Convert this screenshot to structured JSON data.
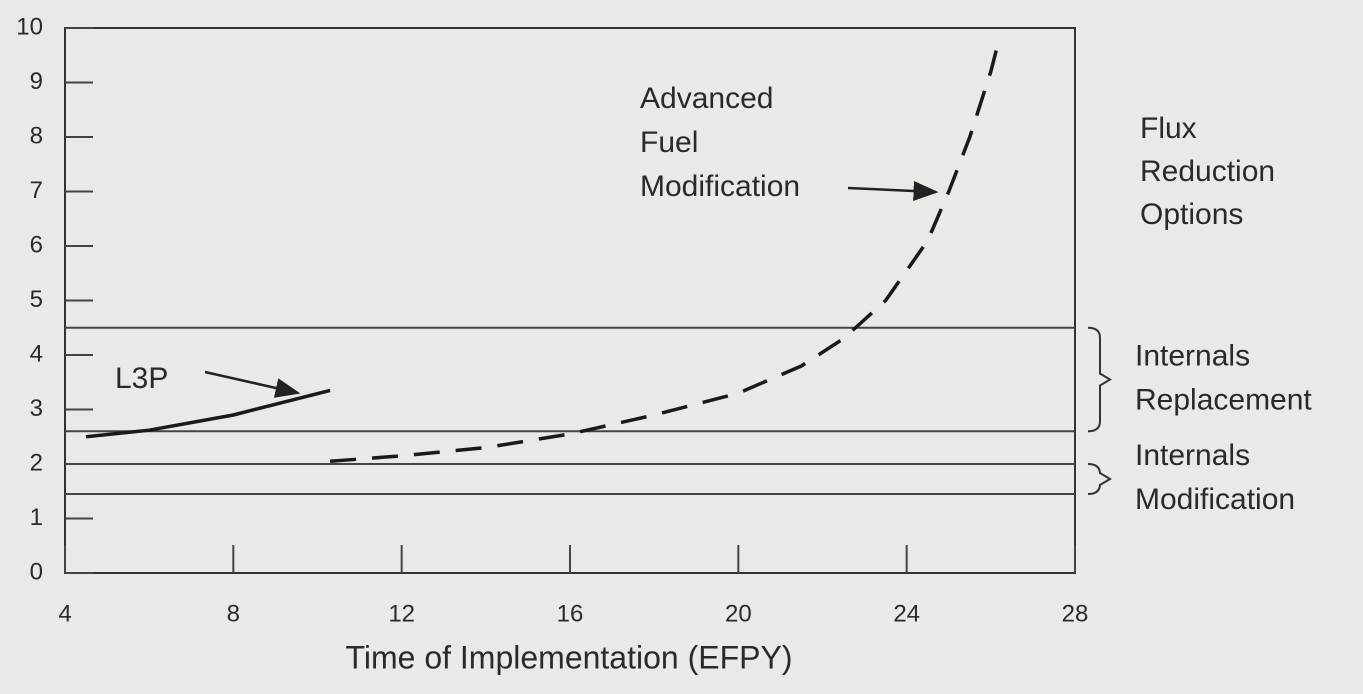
{
  "chart_data": {
    "type": "line",
    "x_label": "Time of Implementation (EFPY)",
    "xlim": [
      4,
      28
    ],
    "ylim": [
      0,
      10
    ],
    "xticks": [
      4,
      8,
      12,
      16,
      20,
      24,
      28
    ],
    "yticks": [
      0,
      1,
      2,
      3,
      4,
      5,
      6,
      7,
      8,
      9,
      10
    ],
    "series": [
      {
        "name": "L3P",
        "color": "#1a1a1a",
        "style": "solid",
        "x": [
          4.5,
          6,
          8,
          10.3
        ],
        "values": [
          2.5,
          2.62,
          2.9,
          3.35
        ]
      },
      {
        "name": "Advanced Fuel Modification",
        "color": "#1a1a1a",
        "style": "dashed",
        "x": [
          10.3,
          12,
          14,
          16,
          18,
          20,
          21.5,
          22.5,
          23.5,
          24.5,
          25,
          25.5,
          26,
          26.2
        ],
        "values": [
          2.05,
          2.15,
          2.3,
          2.55,
          2.9,
          3.3,
          3.8,
          4.3,
          5.0,
          6.1,
          7.0,
          8.0,
          9.2,
          9.8
        ]
      }
    ],
    "bands": [
      {
        "label": "Internals Replacement",
        "lines": [
          2.6,
          4.5
        ]
      },
      {
        "label": "Internals Modification",
        "lines": [
          1.45,
          2.0
        ]
      }
    ],
    "annotation": "Flux Reduction Options"
  }
}
